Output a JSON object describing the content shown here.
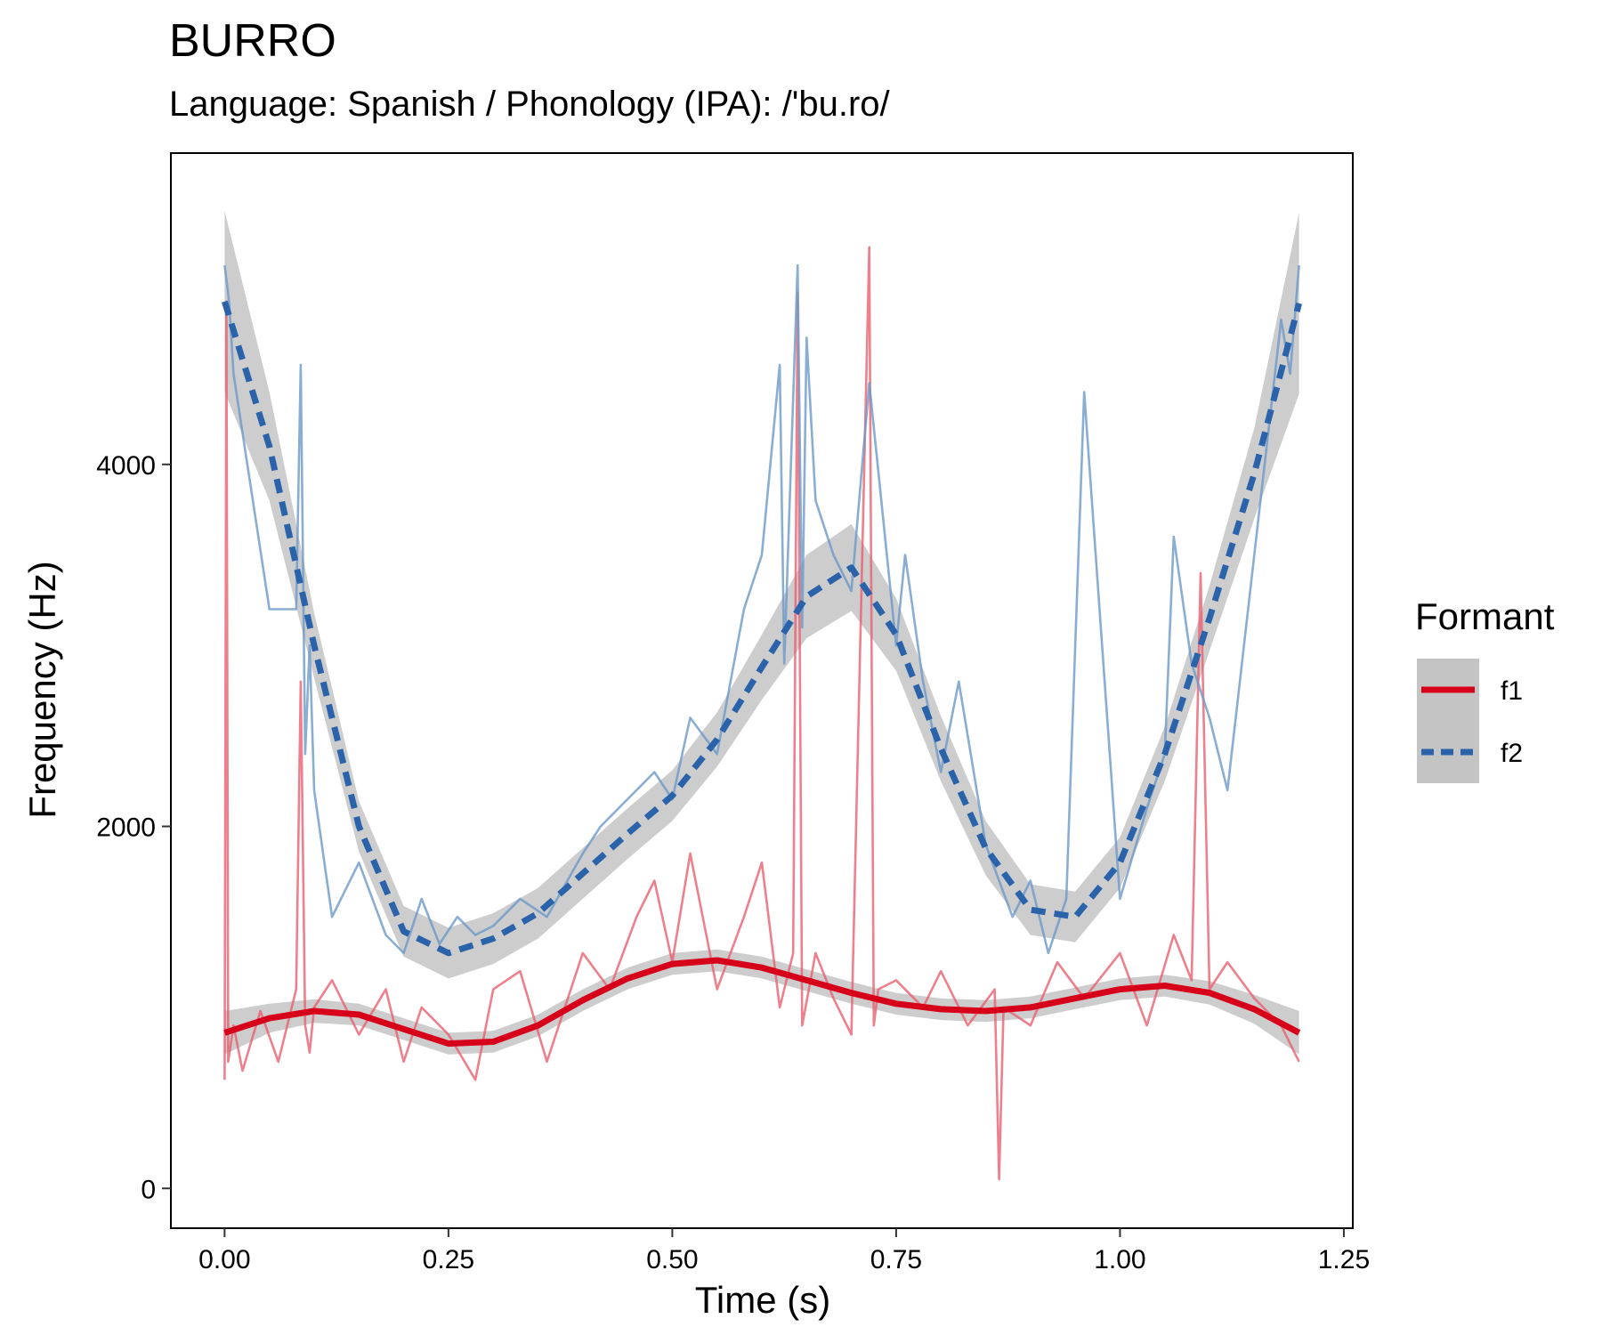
{
  "chart_data": {
    "type": "line",
    "title": "BURRO",
    "subtitle": "Language: Spanish / Phonology (IPA): /'bu.ro/",
    "xlabel": "Time (s)",
    "ylabel": "Frequency (Hz)",
    "xlim": [
      -0.06,
      1.26
    ],
    "ylim": [
      -220,
      5720
    ],
    "xticks": [
      0,
      0.25,
      0.5,
      0.75,
      1,
      1.25
    ],
    "xtick_labels": [
      "0.00",
      "0.25",
      "0.50",
      "0.75",
      "1.00",
      "1.25"
    ],
    "yticks": [
      0,
      2000,
      4000
    ],
    "ytick_labels": [
      "0",
      "2000",
      "4000"
    ],
    "grid": false,
    "legend": {
      "title": "Formant",
      "position": "right",
      "entries": [
        "f1",
        "f2"
      ]
    },
    "colors": {
      "f1": "#d7001a",
      "f2": "#2b63aa",
      "f1_raw": "#e8606f",
      "f2_raw": "#6d98c8",
      "ribbon": "#c4c4c4"
    },
    "series": [
      {
        "name": "f1",
        "style": "solid",
        "smooth": {
          "x": [
            0,
            0.05,
            0.1,
            0.15,
            0.2,
            0.25,
            0.3,
            0.35,
            0.4,
            0.45,
            0.5,
            0.55,
            0.6,
            0.65,
            0.7,
            0.75,
            0.8,
            0.85,
            0.9,
            0.95,
            1.0,
            1.05,
            1.1,
            1.15,
            1.2
          ],
          "y": [
            860,
            940,
            980,
            960,
            880,
            800,
            810,
            900,
            1040,
            1160,
            1240,
            1260,
            1220,
            1150,
            1080,
            1020,
            990,
            980,
            1000,
            1050,
            1100,
            1120,
            1080,
            990,
            860
          ],
          "se": [
            120,
            80,
            65,
            60,
            60,
            60,
            60,
            60,
            60,
            60,
            60,
            60,
            60,
            60,
            60,
            60,
            60,
            60,
            60,
            60,
            60,
            60,
            65,
            80,
            120
          ]
        },
        "raw": {
          "x": [
            0,
            0.002,
            0.004,
            0.01,
            0.02,
            0.04,
            0.06,
            0.08,
            0.085,
            0.09,
            0.095,
            0.1,
            0.12,
            0.15,
            0.18,
            0.2,
            0.22,
            0.25,
            0.28,
            0.3,
            0.33,
            0.36,
            0.4,
            0.43,
            0.46,
            0.48,
            0.5,
            0.52,
            0.55,
            0.58,
            0.6,
            0.62,
            0.635,
            0.64,
            0.645,
            0.66,
            0.68,
            0.7,
            0.72,
            0.725,
            0.73,
            0.75,
            0.78,
            0.8,
            0.83,
            0.86,
            0.865,
            0.87,
            0.9,
            0.93,
            0.96,
            1.0,
            1.03,
            1.06,
            1.08,
            1.09,
            1.1,
            1.12,
            1.15,
            1.18,
            1.2
          ],
          "y": [
            600,
            4900,
            700,
            900,
            650,
            980,
            700,
            1100,
            2800,
            900,
            750,
            1000,
            1150,
            850,
            1100,
            700,
            1000,
            850,
            600,
            1100,
            1200,
            700,
            1300,
            1100,
            1500,
            1700,
            1250,
            1850,
            1100,
            1500,
            1800,
            1000,
            1300,
            4950,
            900,
            1300,
            1050,
            850,
            5200,
            900,
            1100,
            1150,
            1000,
            1200,
            900,
            1100,
            50,
            1000,
            900,
            1250,
            1050,
            1300,
            900,
            1400,
            1150,
            3400,
            1100,
            1250,
            1050,
            900,
            700
          ]
        }
      },
      {
        "name": "f2",
        "style": "dashed",
        "smooth": {
          "x": [
            0,
            0.05,
            0.1,
            0.15,
            0.2,
            0.25,
            0.3,
            0.35,
            0.4,
            0.45,
            0.5,
            0.55,
            0.6,
            0.65,
            0.7,
            0.75,
            0.8,
            0.85,
            0.9,
            0.95,
            1.0,
            1.05,
            1.1,
            1.15,
            1.2
          ],
          "y": [
            4900,
            4100,
            3000,
            2000,
            1420,
            1300,
            1380,
            1520,
            1740,
            1960,
            2170,
            2480,
            2880,
            3270,
            3430,
            3060,
            2430,
            1880,
            1540,
            1500,
            1800,
            2400,
            3150,
            3950,
            4890
          ],
          "se": [
            500,
            300,
            180,
            140,
            140,
            140,
            140,
            140,
            140,
            140,
            140,
            150,
            180,
            230,
            240,
            200,
            180,
            150,
            140,
            140,
            140,
            150,
            180,
            250,
            500
          ]
        },
        "raw": {
          "x": [
            0,
            0.005,
            0.01,
            0.05,
            0.08,
            0.085,
            0.09,
            0.095,
            0.1,
            0.12,
            0.15,
            0.18,
            0.2,
            0.22,
            0.24,
            0.26,
            0.28,
            0.3,
            0.33,
            0.36,
            0.4,
            0.42,
            0.45,
            0.48,
            0.5,
            0.52,
            0.55,
            0.58,
            0.6,
            0.62,
            0.625,
            0.64,
            0.645,
            0.65,
            0.66,
            0.68,
            0.7,
            0.72,
            0.75,
            0.76,
            0.78,
            0.8,
            0.82,
            0.85,
            0.88,
            0.9,
            0.92,
            0.94,
            0.96,
            1.0,
            1.03,
            1.05,
            1.06,
            1.08,
            1.1,
            1.12,
            1.15,
            1.18,
            1.19,
            1.2
          ],
          "y": [
            5100,
            4900,
            4500,
            3200,
            3200,
            4550,
            2400,
            3000,
            2200,
            1500,
            1800,
            1400,
            1300,
            1600,
            1350,
            1500,
            1400,
            1450,
            1600,
            1500,
            1850,
            2000,
            2150,
            2300,
            2150,
            2600,
            2400,
            3200,
            3500,
            4550,
            2900,
            5100,
            3100,
            4700,
            3800,
            3500,
            3300,
            4450,
            3000,
            3500,
            2800,
            2300,
            2800,
            1900,
            1500,
            1700,
            1300,
            1600,
            4400,
            1600,
            2100,
            2400,
            3600,
            2900,
            2600,
            2200,
            3500,
            4800,
            4500,
            5100
          ]
        }
      }
    ]
  }
}
